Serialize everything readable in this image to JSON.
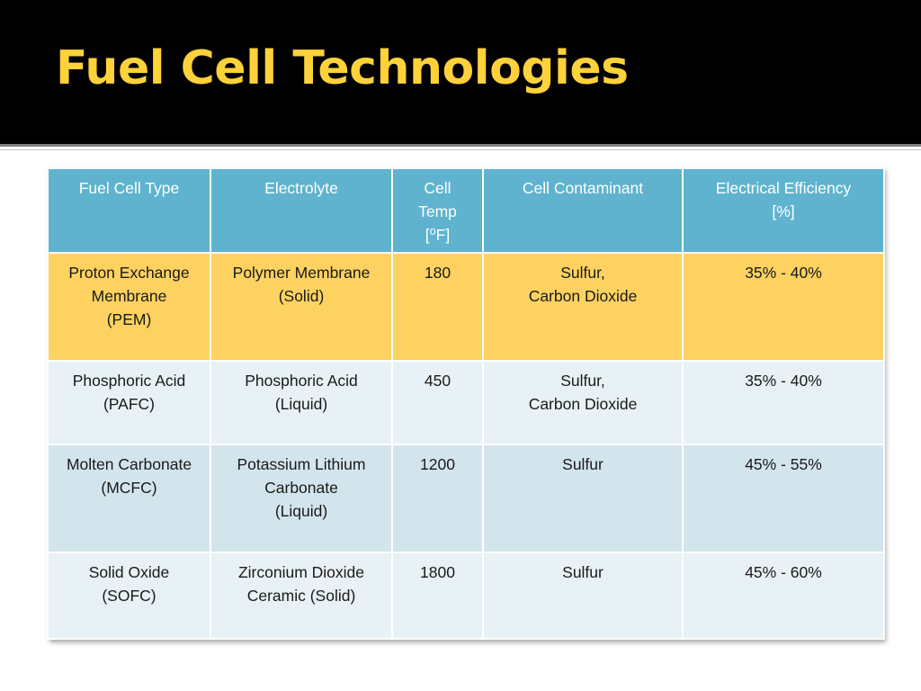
{
  "slide": {
    "title": "Fuel Cell Technologies"
  },
  "table": {
    "headers": [
      "Fuel Cell Type",
      "Electrolyte",
      "Cell\nTemp\n[⁰F]",
      "Cell Contaminant",
      "Electrical  Efficiency\n[%]"
    ],
    "rows": [
      [
        "Proton Exchange\nMembrane\n(PEM)",
        "Polymer Membrane\n(Solid)",
        "180",
        "Sulfur,\nCarbon Dioxide",
        "35%  - 40%"
      ],
      [
        "Phosphoric Acid\n(PAFC)",
        "Phosphoric Acid\n(Liquid)",
        "450",
        "Sulfur,\nCarbon Dioxide",
        "35%  - 40%"
      ],
      [
        "Molten Carbonate\n(MCFC)",
        "Potassium Lithium\nCarbonate\n(Liquid)",
        "1200",
        "Sulfur",
        "45%  - 55%"
      ],
      [
        "Solid Oxide\n(SOFC)",
        "Zirconium Dioxide\nCeramic (Solid)",
        "1800",
        "Sulfur",
        "45%  - 60%"
      ]
    ]
  },
  "colors": {
    "title": "#ffd23a",
    "header_bg": "#5fb3ce",
    "highlight_row": "#fdd260",
    "row_light": "#e8f1f5",
    "row_dark": "#d3e5ec"
  }
}
